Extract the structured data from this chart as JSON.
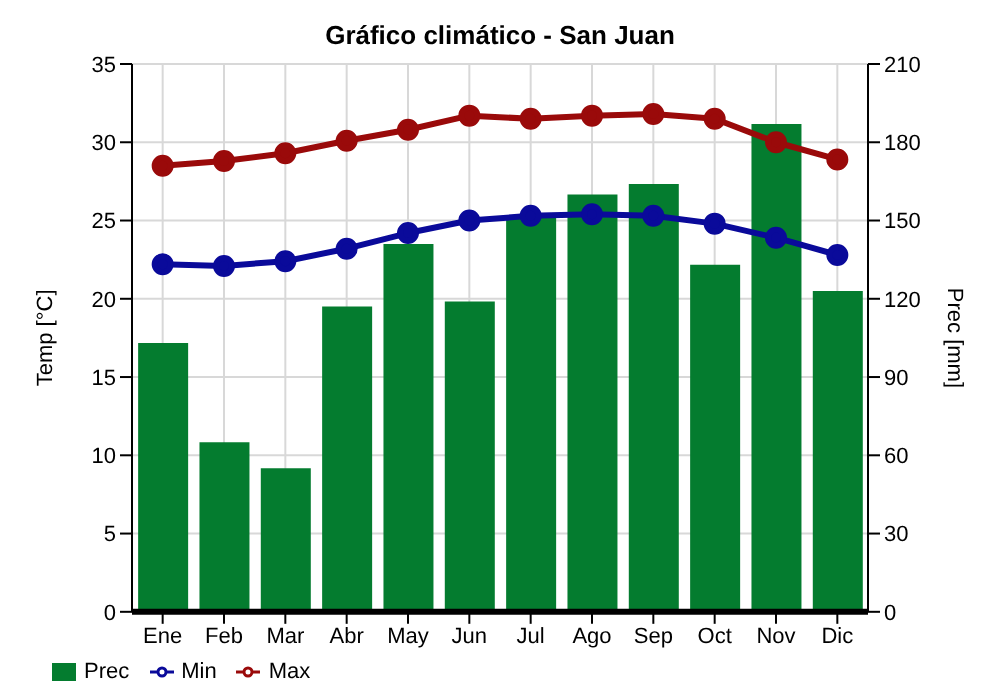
{
  "chart_data": {
    "type": "bar",
    "title": "Gráfico climático - San Juan",
    "ylabel": "Temp [°C]",
    "y2label": "Prec [mm]",
    "categories": [
      "Ene",
      "Feb",
      "Mar",
      "Abr",
      "May",
      "Jun",
      "Jul",
      "Ago",
      "Sep",
      "Oct",
      "Nov",
      "Dic"
    ],
    "series": [
      {
        "name": "Prec",
        "axis": "y2",
        "color": "#047c2f",
        "values": [
          103,
          65,
          55,
          117,
          141,
          119,
          151,
          160,
          164,
          133,
          187,
          123
        ]
      },
      {
        "name": "Min",
        "type": "line",
        "color": "#0a0a9a",
        "values": [
          22.2,
          22.1,
          22.4,
          23.2,
          24.2,
          25.0,
          25.3,
          25.4,
          25.3,
          24.8,
          23.9,
          22.8
        ]
      },
      {
        "name": "Max",
        "type": "line",
        "color": "#9a0a0a",
        "values": [
          28.5,
          28.8,
          29.3,
          30.1,
          30.8,
          31.7,
          31.5,
          31.7,
          31.8,
          31.5,
          30.0,
          28.9
        ]
      }
    ],
    "ylim": [
      0,
      35
    ],
    "yticks": [
      0,
      5,
      10,
      15,
      20,
      25,
      30,
      35
    ],
    "y2lim": [
      0,
      210
    ],
    "y2ticks": [
      0,
      30,
      60,
      90,
      120,
      150,
      180,
      210
    ],
    "grid": true,
    "legend": "bottom",
    "marker": "circle"
  }
}
